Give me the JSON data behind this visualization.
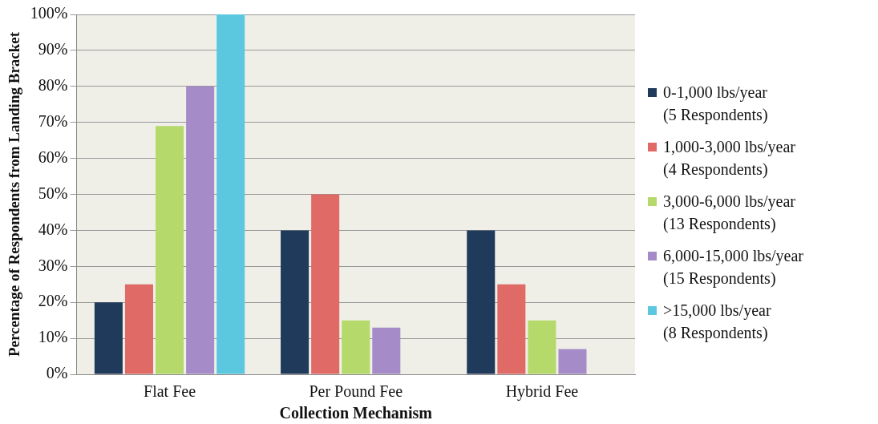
{
  "chart_data": {
    "type": "bar",
    "xlabel": "Collection Mechanism",
    "ylabel": "Percentage of Respondents from Landing Bracket",
    "categories": [
      "Flat Fee",
      "Per Pound Fee",
      "Hybrid Fee"
    ],
    "series": [
      {
        "name": "0-1,000 lbs/year (5 Respondents)",
        "color": "#1f3a5a",
        "values": [
          20,
          40,
          40
        ]
      },
      {
        "name": "1,000-3,000 lbs/year (4 Respondents)",
        "color": "#e06a66",
        "values": [
          25,
          50,
          25
        ]
      },
      {
        "name": "3,000-6,000 lbs/year (13 Respondents)",
        "color": "#b5d96a",
        "values": [
          69,
          15,
          15
        ]
      },
      {
        "name": "6,000-15,000 lbs/year (15 Respondents)",
        "color": "#a58cc8",
        "values": [
          80,
          13,
          7
        ]
      },
      {
        "name": ">15,000 lbs/year (8 Respondents)",
        "color": "#5bc8e0",
        "values": [
          100,
          0,
          0
        ]
      }
    ],
    "ylim": [
      0,
      100
    ],
    "yticks": [
      {
        "value": 0,
        "label": "0%"
      },
      {
        "value": 10,
        "label": "10%"
      },
      {
        "value": 20,
        "label": "20%"
      },
      {
        "value": 30,
        "label": "30%"
      },
      {
        "value": 40,
        "label": "40%"
      },
      {
        "value": 50,
        "label": "50%"
      },
      {
        "value": 60,
        "label": "60%"
      },
      {
        "value": 70,
        "label": "70%"
      },
      {
        "value": 80,
        "label": "80%"
      },
      {
        "value": 90,
        "label": "90%"
      },
      {
        "value": 100,
        "label": "100%"
      }
    ],
    "grid": "y",
    "legend": "right"
  }
}
